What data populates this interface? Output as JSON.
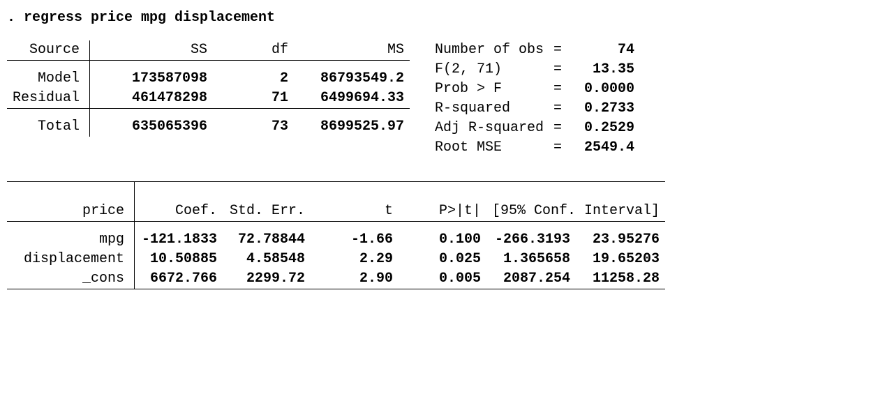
{
  "command": ". regress price mpg displacement",
  "anova": {
    "headers": {
      "source": "Source",
      "ss": "SS",
      "df": "df",
      "ms": "MS"
    },
    "model": {
      "label": "Model",
      "ss": "173587098",
      "df": "2",
      "ms": "86793549.2"
    },
    "residual": {
      "label": "Residual",
      "ss": "461478298",
      "df": "71",
      "ms": "6499694.33"
    },
    "total": {
      "label": "Total",
      "ss": "635065396",
      "df": "73",
      "ms": "8699525.97"
    }
  },
  "stats": {
    "nobs": {
      "label": "Number of obs",
      "value": "74"
    },
    "f": {
      "label": "F(2, 71)",
      "value": "13.35"
    },
    "probf": {
      "label": "Prob > F",
      "value": "0.0000"
    },
    "r2": {
      "label": "R-squared",
      "value": "0.2733"
    },
    "adjr2": {
      "label": "Adj R-squared",
      "value": "0.2529"
    },
    "rmse": {
      "label": "Root MSE",
      "value": "2549.4"
    }
  },
  "coef": {
    "depvar": "price",
    "headers": {
      "coef": "Coef.",
      "se": "Std. Err.",
      "t": "t",
      "p": "P>|t|",
      "ci": "[95% Conf. Interval]"
    },
    "rows": {
      "mpg": {
        "label": "mpg",
        "coef": "-121.1833",
        "se": "72.78844",
        "t": "-1.66",
        "p": "0.100",
        "lo": "-266.3193",
        "hi": "23.95276"
      },
      "disp": {
        "label": "displacement",
        "coef": "10.50885",
        "se": "4.58548",
        "t": "2.29",
        "p": "0.025",
        "lo": "1.365658",
        "hi": "19.65203"
      },
      "cons": {
        "label": "_cons",
        "coef": "6672.766",
        "se": "2299.72",
        "t": "2.90",
        "p": "0.005",
        "lo": "2087.254",
        "hi": "11258.28"
      }
    }
  },
  "eq": "="
}
